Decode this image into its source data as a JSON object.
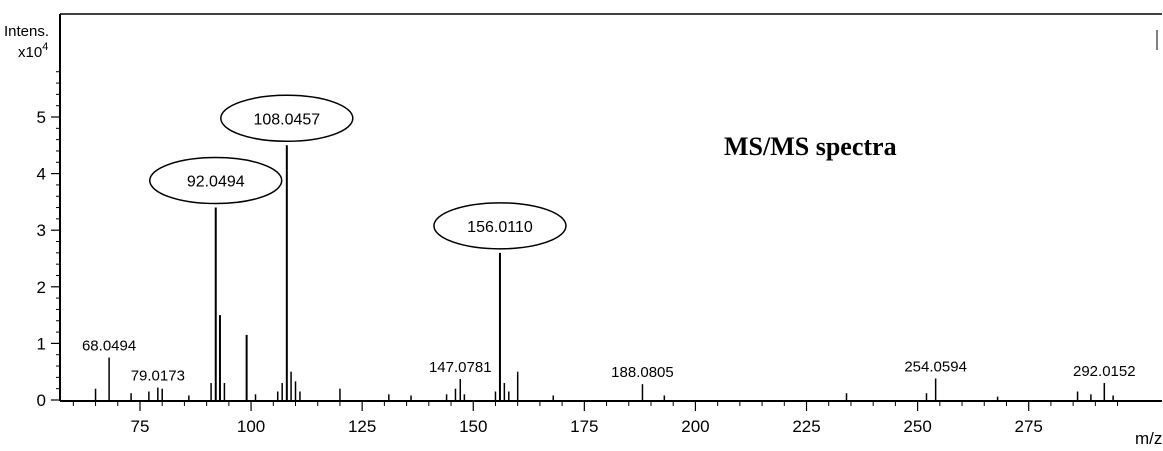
{
  "chart_data": {
    "type": "line",
    "title": "MS/MS spectra",
    "xlabel": "m/z",
    "ylabel": "Intens.",
    "y_scale_label": "x10",
    "y_scale_exp": "4",
    "xlim": [
      57,
      305
    ],
    "ylim": [
      0,
      6
    ],
    "x_ticks": [
      75,
      100,
      125,
      150,
      175,
      200,
      225,
      250,
      275
    ],
    "y_ticks": [
      0,
      1,
      2,
      3,
      4,
      5
    ],
    "grid": false,
    "line_color": "#000000",
    "peaks": [
      {
        "x": 65.0,
        "y": 0.2
      },
      {
        "x": 68.0494,
        "y": 0.75,
        "label": "68.0494"
      },
      {
        "x": 73.0,
        "y": 0.12
      },
      {
        "x": 77.0,
        "y": 0.15
      },
      {
        "x": 79.0173,
        "y": 0.22,
        "label": "79.0173"
      },
      {
        "x": 80.0,
        "y": 0.2
      },
      {
        "x": 86.0,
        "y": 0.08
      },
      {
        "x": 91.0,
        "y": 0.3
      },
      {
        "x": 92.0494,
        "y": 3.4,
        "label": "92.0494",
        "annotated": true
      },
      {
        "x": 93.0,
        "y": 1.5
      },
      {
        "x": 94.0,
        "y": 0.3
      },
      {
        "x": 99.0,
        "y": 1.15
      },
      {
        "x": 101.0,
        "y": 0.1
      },
      {
        "x": 106.0,
        "y": 0.15
      },
      {
        "x": 107.0,
        "y": 0.3
      },
      {
        "x": 108.0457,
        "y": 4.5,
        "label": "108.0457",
        "annotated": true
      },
      {
        "x": 109.0,
        "y": 0.5
      },
      {
        "x": 110.0,
        "y": 0.33
      },
      {
        "x": 111.0,
        "y": 0.15
      },
      {
        "x": 120.0,
        "y": 0.2
      },
      {
        "x": 131.0,
        "y": 0.1
      },
      {
        "x": 136.0,
        "y": 0.08
      },
      {
        "x": 144.0,
        "y": 0.1
      },
      {
        "x": 146.0,
        "y": 0.2
      },
      {
        "x": 147.0781,
        "y": 0.37,
        "label": "147.0781"
      },
      {
        "x": 148.0,
        "y": 0.1
      },
      {
        "x": 155.0,
        "y": 0.15
      },
      {
        "x": 156.011,
        "y": 2.6,
        "label": "156.0110",
        "annotated": true
      },
      {
        "x": 157.0,
        "y": 0.3
      },
      {
        "x": 158.0,
        "y": 0.15
      },
      {
        "x": 160.0,
        "y": 0.5
      },
      {
        "x": 168.0,
        "y": 0.08
      },
      {
        "x": 188.0805,
        "y": 0.28,
        "label": "188.0805"
      },
      {
        "x": 193.0,
        "y": 0.08
      },
      {
        "x": 234.0,
        "y": 0.12
      },
      {
        "x": 252.0,
        "y": 0.12
      },
      {
        "x": 254.0594,
        "y": 0.38,
        "label": "254.0594"
      },
      {
        "x": 268.0,
        "y": 0.06
      },
      {
        "x": 286.0,
        "y": 0.15
      },
      {
        "x": 289.0,
        "y": 0.1
      },
      {
        "x": 292.0152,
        "y": 0.3,
        "label": "292.0152"
      },
      {
        "x": 294.0,
        "y": 0.08
      }
    ]
  }
}
